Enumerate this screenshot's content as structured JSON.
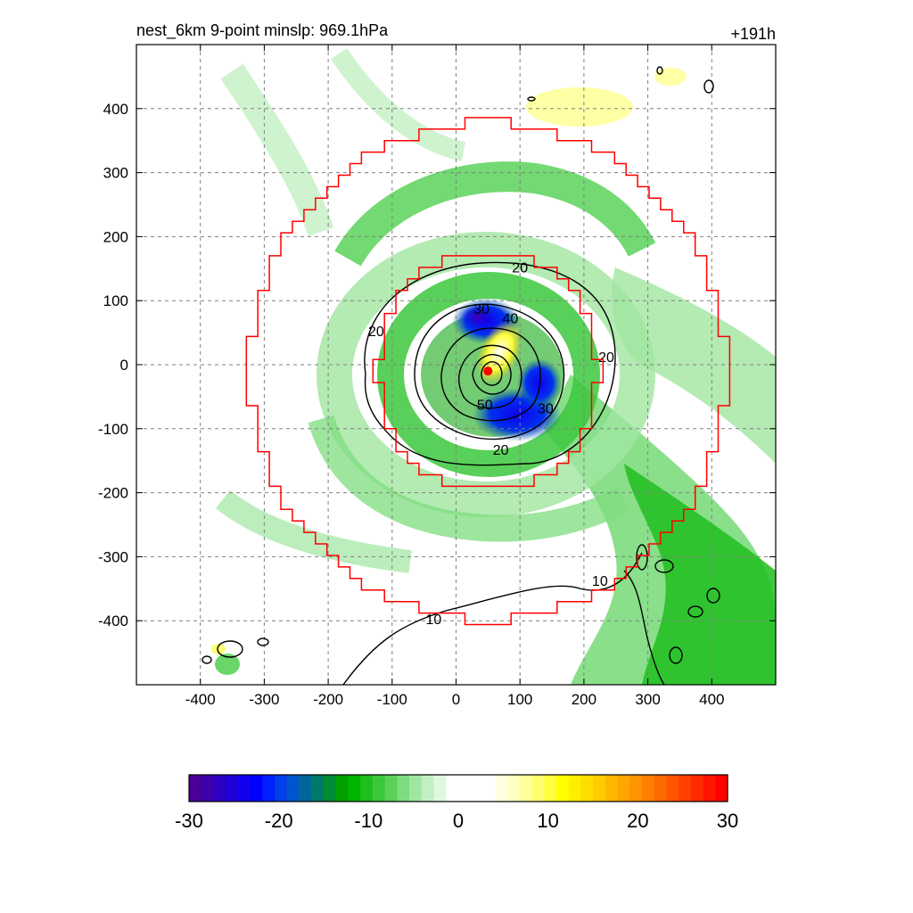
{
  "chart_data": {
    "type": "heatmap",
    "title": "nest_6km  9-point minslp: 969.1hPa",
    "time_label": "+191h",
    "xlim": [
      -500,
      500
    ],
    "ylim": [
      -500,
      500
    ],
    "x_ticks": [
      -400,
      -300,
      -200,
      -100,
      0,
      100,
      200,
      300,
      400
    ],
    "y_ticks": [
      400,
      300,
      200,
      100,
      0,
      -100,
      -200,
      -300,
      -400
    ],
    "x_tick_labels": [
      "-400",
      "-300",
      "-200",
      "-100",
      "0",
      "100",
      "200",
      "300",
      "400"
    ],
    "y_tick_labels": [
      "400",
      "300",
      "200",
      "100",
      "0",
      "-100",
      "-200",
      "-300",
      "-400"
    ],
    "grid": true,
    "storm_center": [
      50,
      -10
    ],
    "inner_box_halfwidth": 180,
    "outer_box_halfwidth": 380,
    "contour_labels": [
      {
        "text": "20",
        "x": 100,
        "y": 150
      },
      {
        "text": "20",
        "x": -125,
        "y": 50
      },
      {
        "text": "20",
        "x": 235,
        "y": 10
      },
      {
        "text": "30",
        "x": 40,
        "y": 85
      },
      {
        "text": "40",
        "x": 85,
        "y": 70
      },
      {
        "text": "50",
        "x": 45,
        "y": -65
      },
      {
        "text": "30",
        "x": 140,
        "y": -70
      },
      {
        "text": "20",
        "x": 70,
        "y": -135
      },
      {
        "text": "10",
        "x": -35,
        "y": -400
      },
      {
        "text": "10",
        "x": 225,
        "y": -340
      }
    ],
    "colorbar": {
      "min": -30,
      "max": 30,
      "tick_values": [
        -30,
        -20,
        -10,
        0,
        10,
        20,
        30
      ],
      "tick_labels": [
        "-30",
        "-20",
        "-10",
        "0",
        "10",
        "20",
        "30"
      ],
      "colors": [
        "#4b0095",
        "#3d00ab",
        "#2f00c1",
        "#2000d8",
        "#1100ee",
        "#0000ff",
        "#0020ff",
        "#0040e6",
        "#0055cc",
        "#006699",
        "#007a66",
        "#008c33",
        "#00a000",
        "#00b400",
        "#1ebe1e",
        "#3cc83c",
        "#5ad25a",
        "#7ddc7d",
        "#a0e6a0",
        "#c3f0c3",
        "#e0f8e0",
        "#ffffff",
        "#ffffff",
        "#ffffff",
        "#ffffff",
        "#ffffe0",
        "#ffffc0",
        "#ffff9c",
        "#ffff70",
        "#ffff40",
        "#ffff00",
        "#ffee00",
        "#ffdc00",
        "#ffcc00",
        "#ffb800",
        "#ffa600",
        "#ff9400",
        "#ff8000",
        "#ff6a00",
        "#ff5500",
        "#ff4000",
        "#ff2a00",
        "#ff1500",
        "#ff0000"
      ]
    }
  }
}
